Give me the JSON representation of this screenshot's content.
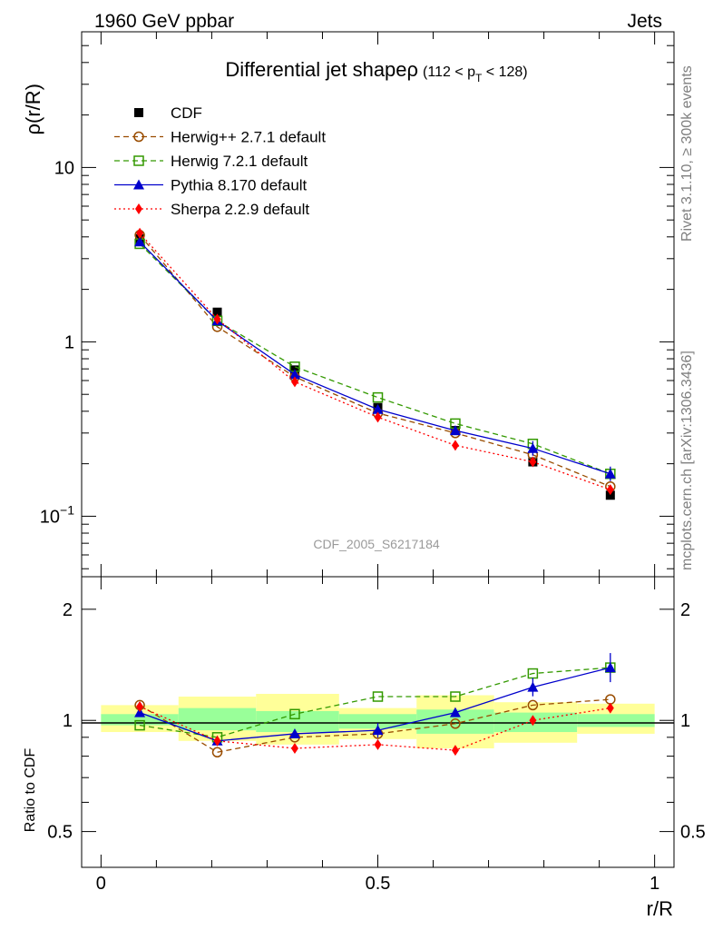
{
  "header": {
    "left": "1960 GeV ppbar",
    "right": "Jets"
  },
  "side_labels": {
    "rivet": "Rivet 3.1.10, ≥ 300k events",
    "mcplots": "mcplots.cern.ch [arXiv:1306.3436]"
  },
  "watermark": "CDF_2005_S6217184",
  "colors": {
    "cdf": "#000000",
    "herwigpp": "#994c00",
    "herwig7": "#339900",
    "pythia": "#0000cc",
    "sherpa": "#ff0000",
    "band_yellow": "#ffff99",
    "band_green": "#99ff99"
  },
  "chart_data": [
    {
      "type": "line",
      "panel": "main",
      "title": "Differential jet shapeρ",
      "title_suffix": "(112 < p",
      "title_sub": "T",
      "title_end": " < 128)",
      "ylabel": "ρ(r/R)",
      "yscale": "log",
      "ylim": [
        0.045,
        60
      ],
      "xlim": [
        -0.035,
        1.035
      ],
      "yticks": [
        {
          "value": 0.1,
          "base": "10",
          "exp": "−1"
        },
        {
          "value": 1,
          "label": "1"
        },
        {
          "value": 10,
          "label": "10"
        }
      ],
      "x": [
        0.07,
        0.21,
        0.35,
        0.5,
        0.64,
        0.78,
        0.92
      ],
      "series": [
        {
          "name": "CDF",
          "key": "cdf",
          "marker": "square-filled",
          "line": "none",
          "values": [
            3.9,
            1.48,
            0.69,
            0.42,
            0.31,
            0.205,
            0.132
          ]
        },
        {
          "name": "Herwig++ 2.7.1 default",
          "key": "herwigpp",
          "marker": "circle-open",
          "line": "dashed",
          "values": [
            4.1,
            1.22,
            0.63,
            0.39,
            0.3,
            0.225,
            0.148
          ]
        },
        {
          "name": "Herwig 7.2.1 default",
          "key": "herwig7",
          "marker": "square-open",
          "line": "dashed",
          "values": [
            3.65,
            1.32,
            0.72,
            0.48,
            0.34,
            0.26,
            0.175
          ]
        },
        {
          "name": "Pythia 8.170 default",
          "key": "pythia",
          "marker": "triangle-filled",
          "line": "solid",
          "values": [
            3.75,
            1.32,
            0.65,
            0.41,
            0.31,
            0.245,
            0.175
          ]
        },
        {
          "name": "Sherpa 2.2.9 default",
          "key": "sherpa",
          "marker": "diamond-filled",
          "line": "dotted",
          "values": [
            4.2,
            1.35,
            0.59,
            0.37,
            0.255,
            0.205,
            0.142
          ]
        }
      ]
    },
    {
      "type": "line",
      "panel": "ratio",
      "ylabel": "Ratio to CDF",
      "xlabel": "r/R",
      "yscale": "log",
      "ylim": [
        0.4,
        2.45
      ],
      "xlim": [
        -0.035,
        1.035
      ],
      "xticks": [
        {
          "value": 0,
          "label": "0"
        },
        {
          "value": 0.5,
          "label": "0.5"
        },
        {
          "value": 1,
          "label": "1"
        }
      ],
      "yticks": [
        {
          "value": 0.5,
          "label": "0.5"
        },
        {
          "value": 1,
          "label": "1"
        },
        {
          "value": 2,
          "label": "2"
        }
      ],
      "bins": [
        {
          "lo": 0.0,
          "hi": 0.14,
          "yellow": [
            0.93,
            1.1
          ],
          "green": [
            0.97,
            1.04
          ]
        },
        {
          "lo": 0.14,
          "hi": 0.28,
          "yellow": [
            0.88,
            1.16
          ],
          "green": [
            0.94,
            1.08
          ]
        },
        {
          "lo": 0.28,
          "hi": 0.43,
          "yellow": [
            0.86,
            1.18
          ],
          "green": [
            0.93,
            1.06
          ]
        },
        {
          "lo": 0.43,
          "hi": 0.57,
          "yellow": [
            0.89,
            1.08
          ],
          "green": [
            0.95,
            1.04
          ]
        },
        {
          "lo": 0.57,
          "hi": 0.71,
          "yellow": [
            0.84,
            1.17
          ],
          "green": [
            0.92,
            1.07
          ]
        },
        {
          "lo": 0.71,
          "hi": 0.86,
          "yellow": [
            0.87,
            1.12
          ],
          "green": [
            0.93,
            1.05
          ]
        },
        {
          "lo": 0.86,
          "hi": 1.0,
          "yellow": [
            0.92,
            1.11
          ],
          "green": [
            0.96,
            1.04
          ]
        }
      ],
      "x": [
        0.07,
        0.21,
        0.35,
        0.5,
        0.64,
        0.78,
        0.92
      ],
      "series": [
        {
          "name": "Herwig++ 2.7.1 default",
          "key": "herwigpp",
          "marker": "circle-open",
          "line": "dashed",
          "values": [
            1.1,
            0.82,
            0.9,
            0.92,
            0.98,
            1.1,
            1.14
          ]
        },
        {
          "name": "Herwig 7.2.1 default",
          "key": "herwig7",
          "marker": "square-open",
          "line": "dashed",
          "values": [
            0.97,
            0.9,
            1.04,
            1.16,
            1.16,
            1.34,
            1.39
          ]
        },
        {
          "name": "Pythia 8.170 default",
          "key": "pythia",
          "marker": "triangle-filled",
          "line": "solid",
          "values": [
            1.05,
            0.88,
            0.92,
            0.94,
            1.05,
            1.23,
            1.39
          ]
        },
        {
          "name": "Sherpa 2.2.9 default",
          "key": "sherpa",
          "marker": "diamond-filled",
          "line": "dotted",
          "values": [
            1.09,
            0.88,
            0.84,
            0.86,
            0.83,
            1.0,
            1.08
          ]
        }
      ]
    }
  ]
}
